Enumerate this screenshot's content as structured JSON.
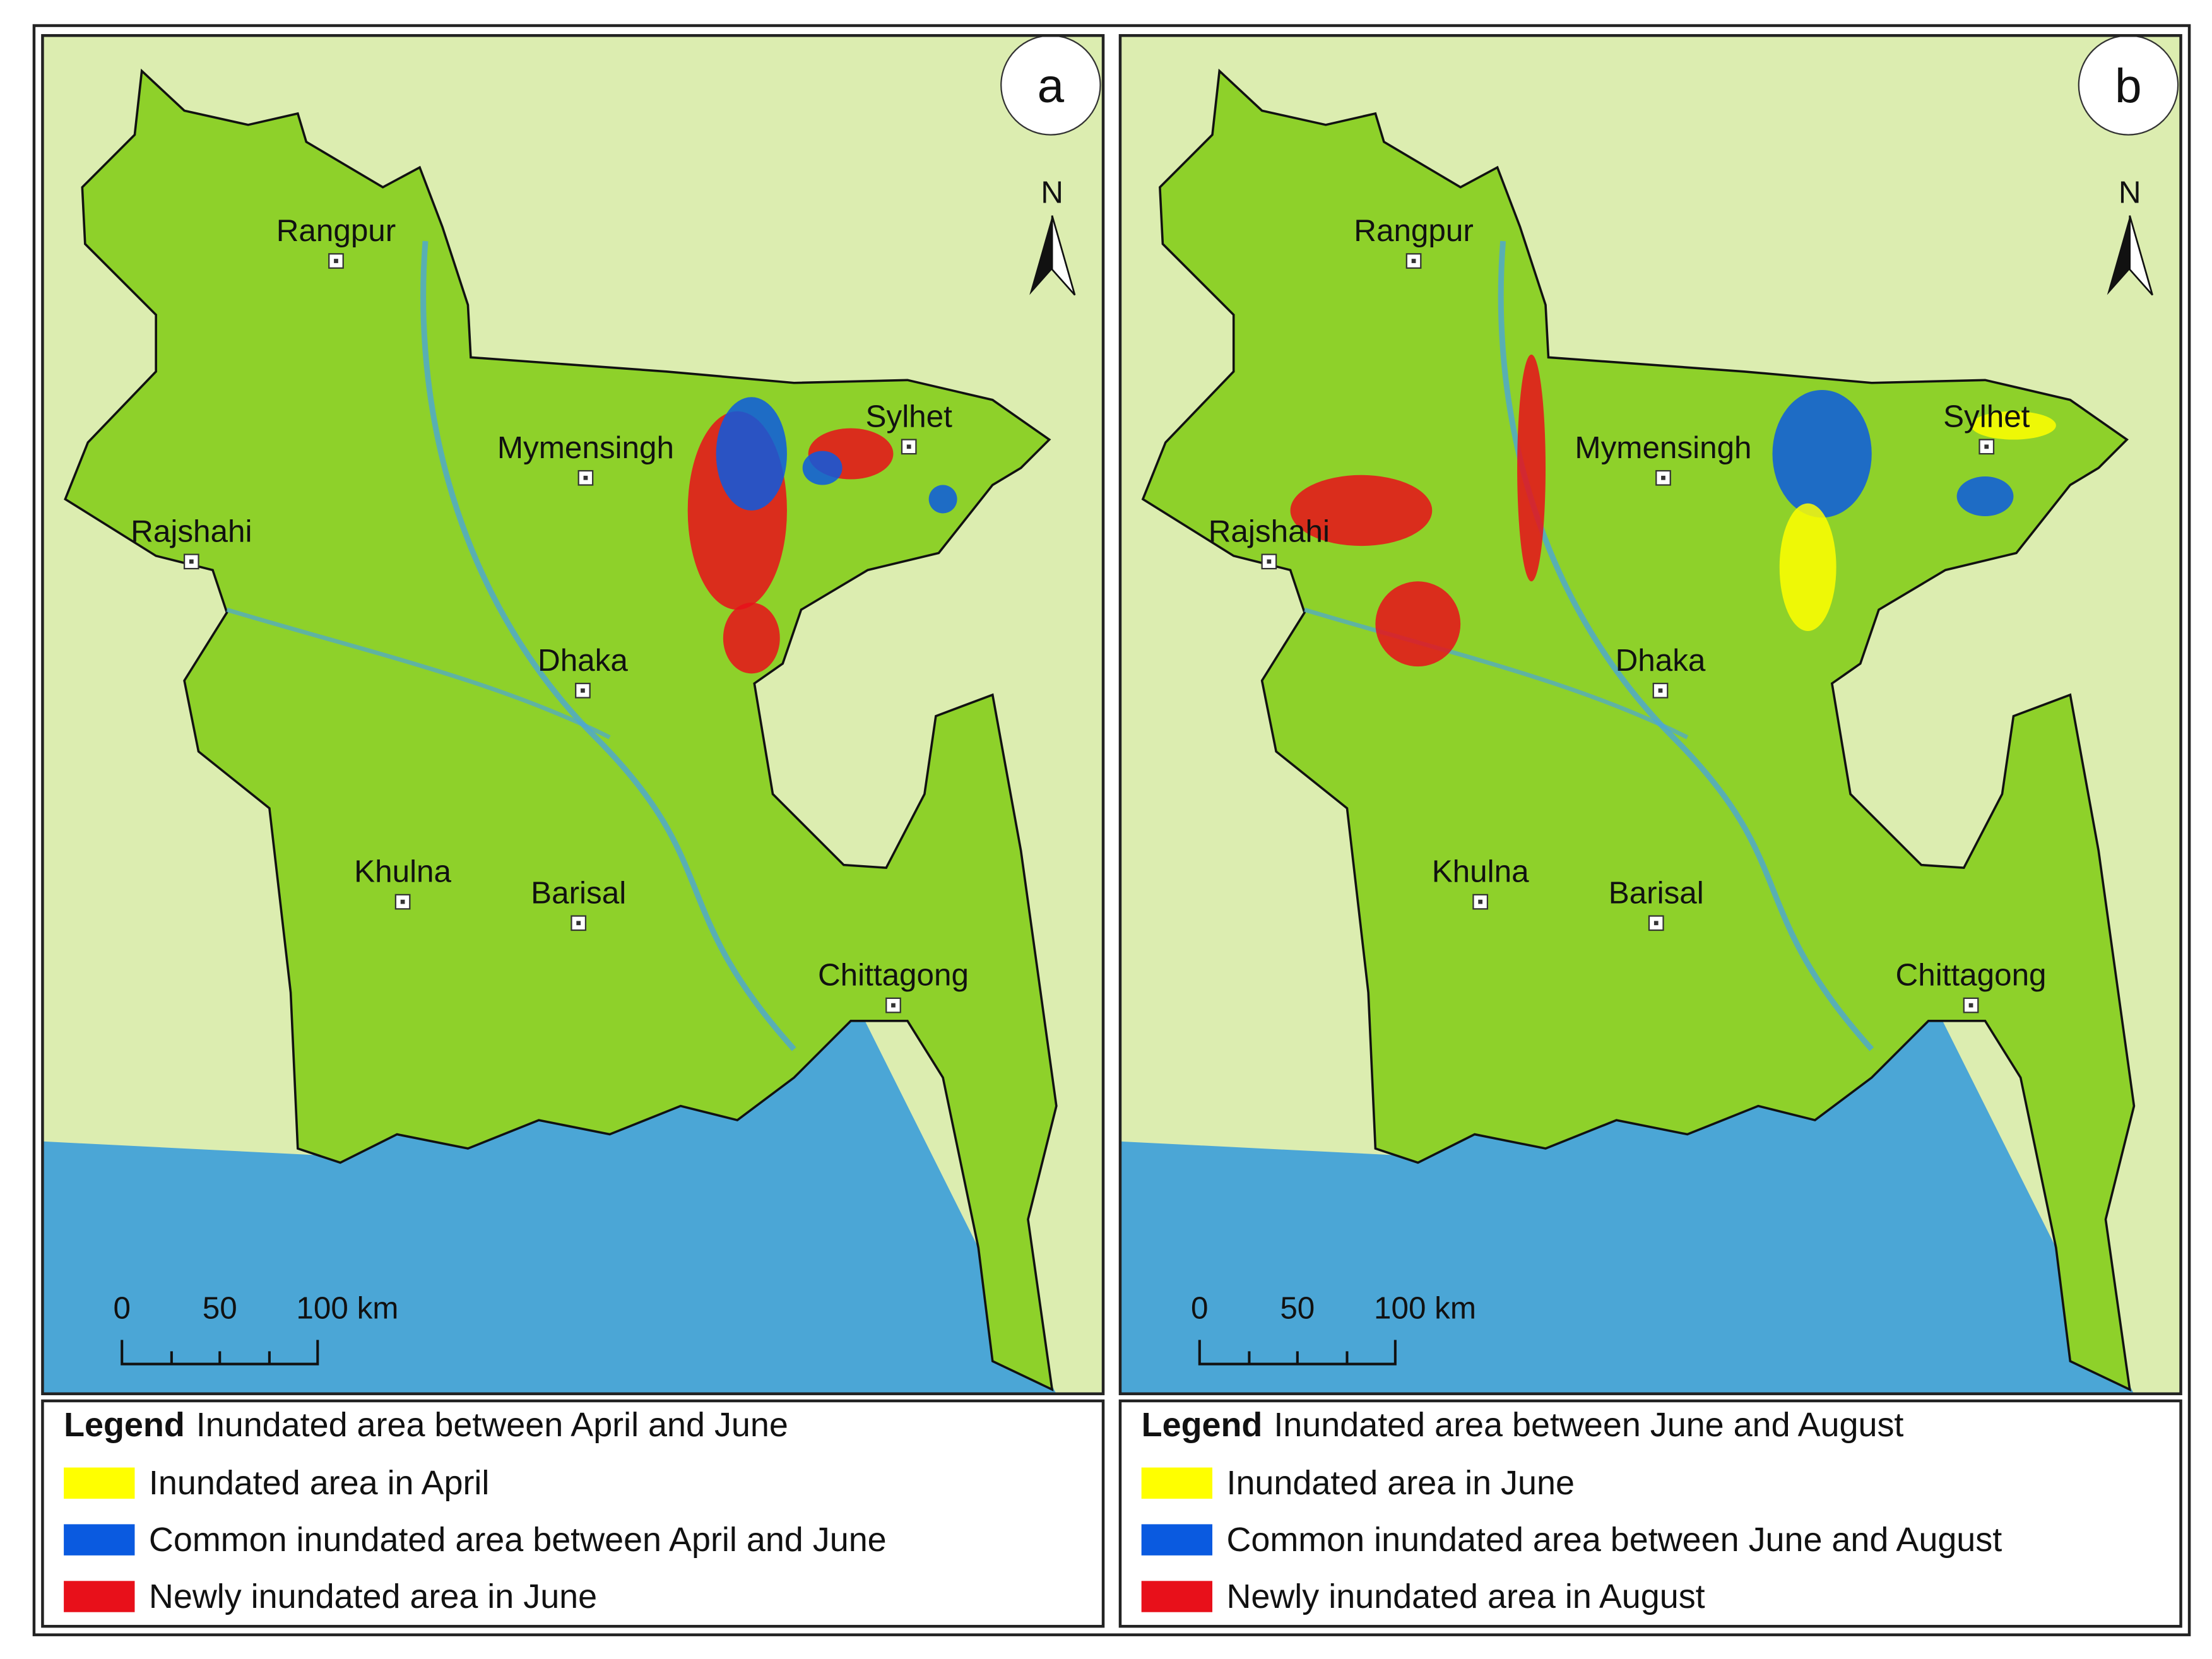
{
  "panels": [
    {
      "label": "a",
      "north": "N",
      "cities": [
        "Rangpur",
        "Mymensingh",
        "Sylhet",
        "Rajshahi",
        "Dhaka",
        "Khulna",
        "Barisal",
        "Chittagong"
      ],
      "scale_labels": [
        "0",
        "50",
        "100 km"
      ],
      "legend": {
        "heading": "Legend",
        "title": "Inundated area between April and June",
        "items": [
          "Inundated area in April",
          "Common inundated area between April and June",
          "Newly inundated area in June"
        ]
      }
    },
    {
      "label": "b",
      "north": "N",
      "cities": [
        "Rangpur",
        "Mymensingh",
        "Sylhet",
        "Rajshahi",
        "Dhaka",
        "Khulna",
        "Barisal",
        "Chittagong"
      ],
      "scale_labels": [
        "0",
        "50",
        "100 km"
      ],
      "legend": {
        "heading": "Legend",
        "title": "Inundated area between June and August",
        "items": [
          "Inundated area in June",
          "Common inundated area between June and August",
          "Newly inundated area in August"
        ]
      }
    }
  ]
}
